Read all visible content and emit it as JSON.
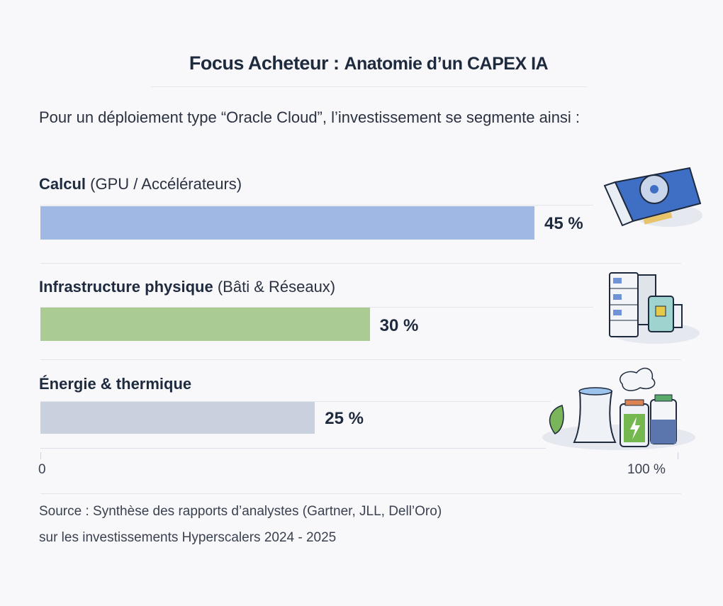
{
  "chart_data": {
    "type": "bar",
    "orientation": "horizontal",
    "title": "Focus Acheteur",
    "title_suffix": "Anatomie d’un CAPEX IA",
    "subtitle": "Pour un déploiement type “Oracle Cloud”, l’investissement se segmente ainsi :",
    "categories": [
      {
        "bold": "Calcul",
        "detail": "(GPU / Accélérateurs)"
      },
      {
        "bold": "Infrastructure physique",
        "detail": "(Bâti & Réseaux)"
      },
      {
        "bold": "Énergie & thermique",
        "detail": ""
      }
    ],
    "values": [
      45,
      30,
      25
    ],
    "value_labels": [
      "45 %",
      "30 %",
      "25 %"
    ],
    "colors": [
      "#9fb9e4",
      "#aacb91",
      "#c9d0de"
    ],
    "icons": [
      "gpu-card-icon",
      "server-rack-icon",
      "energy-cooling-icon"
    ],
    "xlim": [
      0,
      100
    ],
    "x_tick_labels": [
      "0",
      "100 %"
    ],
    "grid": false,
    "legend": "none"
  },
  "source": {
    "line1": "Source : Synthèse des rapports  d’analystes (Gartner, JLL, Dell’Oro)",
    "line2": "sur les investissements Hyperscalers  2024 - 2025"
  }
}
